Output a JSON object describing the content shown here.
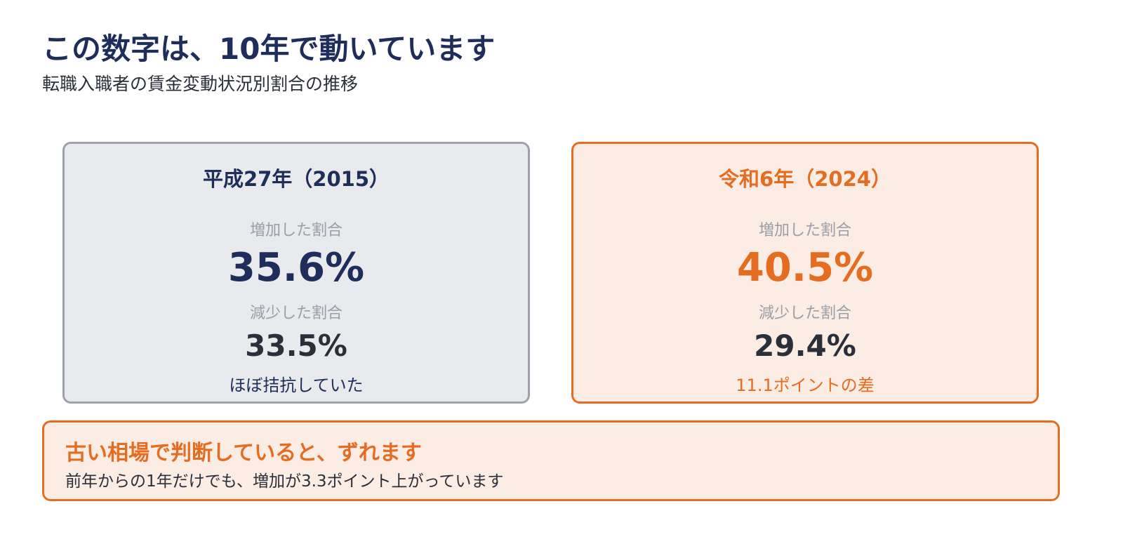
{
  "header": {
    "title": "この数字は、10年で動いています",
    "subtitle": "転職入職者の賃金変動状況別割合の推移"
  },
  "cards": {
    "left": {
      "title": "平成27年（2015）",
      "increase_label": "増加した割合",
      "increase_value": "35.6%",
      "decrease_label": "減少した割合",
      "decrease_value": "33.5%",
      "note": "ほぼ拮抗していた"
    },
    "right": {
      "title": "令和6年（2024）",
      "increase_label": "増加した割合",
      "increase_value": "40.5%",
      "decrease_label": "減少した割合",
      "decrease_value": "29.4%",
      "note": "11.1ポイントの差"
    }
  },
  "callout": {
    "title": "古い相場で判断していると、ずれます",
    "body": "前年からの1年だけでも、増加が3.3ポイント上がっています"
  },
  "colors": {
    "navy": "#1f2d5a",
    "orange": "#e56d22",
    "gray_card_bg": "#e9eaee",
    "orange_card_bg": "#fbece4"
  }
}
